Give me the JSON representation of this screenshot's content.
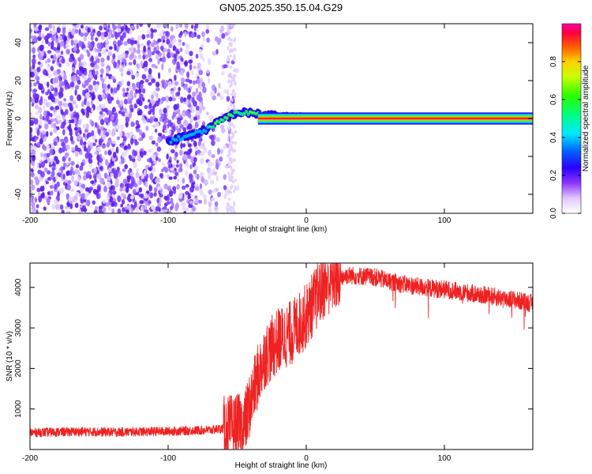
{
  "chart_data": [
    {
      "type": "heatmap",
      "title": "GN05.2025.350.15.04.G29",
      "xlabel": "Height of straight line (km)",
      "ylabel": "Frequency (Hz)",
      "xlim": [
        -200,
        164
      ],
      "ylim": [
        -50,
        50
      ],
      "xticks": [
        -200,
        -100,
        0,
        100
      ],
      "yticks": [
        -40,
        -20,
        0,
        20,
        40
      ],
      "colorbar": {
        "label": "Normalized spectral amplitude",
        "range": [
          0,
          1
        ],
        "ticks": [
          0.0,
          0.2,
          0.4,
          0.6,
          0.8
        ],
        "tick_labels": [
          "0.0",
          "0.2",
          "0.4",
          "0.6",
          "0.8"
        ]
      },
      "signal_track": {
        "x": [
          -100,
          -90,
          -80,
          -70,
          -60,
          -50,
          -40,
          -30,
          -20,
          -10,
          0,
          50,
          100,
          164
        ],
        "frequency": [
          -12,
          -10,
          -8,
          -5,
          0,
          3,
          3,
          2,
          1,
          0.5,
          0,
          0,
          0,
          0
        ]
      },
      "noise_region_x": [
        -200,
        -55
      ]
    },
    {
      "type": "line",
      "title": "",
      "xlabel": "Height of straight line (km)",
      "ylabel": "SNR (10 * v/v)",
      "xlim": [
        -200,
        164
      ],
      "ylim": [
        0,
        4600
      ],
      "xticks": [
        -200,
        -100,
        0,
        100
      ],
      "yticks": [
        1000,
        2000,
        3000,
        4000
      ],
      "series": [
        {
          "name": "SNR",
          "color": "#ee2222",
          "x": [
            -200,
            -180,
            -160,
            -140,
            -120,
            -100,
            -80,
            -70,
            -60,
            -50,
            -45,
            -40,
            -35,
            -30,
            -25,
            -20,
            -15,
            -10,
            -5,
            0,
            5,
            10,
            15,
            20,
            25,
            30,
            40,
            50,
            60,
            70,
            80,
            90,
            100,
            110,
            120,
            130,
            140,
            150,
            164
          ],
          "values": [
            420,
            430,
            440,
            430,
            440,
            450,
            470,
            480,
            520,
            560,
            600,
            1200,
            1800,
            2300,
            2500,
            2700,
            2800,
            2900,
            3100,
            3300,
            3600,
            3900,
            4100,
            4200,
            4250,
            4300,
            4280,
            4250,
            4150,
            4080,
            4020,
            3980,
            3950,
            3900,
            3850,
            3800,
            3750,
            3700,
            3600
          ]
        }
      ]
    }
  ]
}
